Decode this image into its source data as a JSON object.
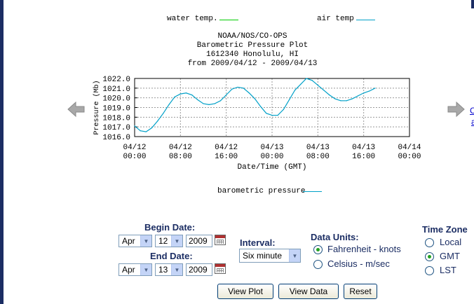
{
  "legend_top": {
    "water_label": "water temp.",
    "water_color": "#00cc00",
    "air_label": "air temp",
    "air_color": "#00a0c8"
  },
  "plot_title": {
    "line1": "NOAA/NOS/CO-OPS",
    "line2": "Barometric Pressure Plot",
    "line3": "1612340 Honolulu, HI",
    "line4": "from 2009/04/12 - 2009/04/13"
  },
  "chart_data": {
    "type": "line",
    "ylabel": "Pressure (Mb)",
    "xlabel": "Date/Time (GMT)",
    "ylim": [
      1016.0,
      1022.0
    ],
    "yticks": [
      "1022.0",
      "1021.0",
      "1020.0",
      "1019.0",
      "1018.0",
      "1017.0",
      "1016.0"
    ],
    "xticks": [
      {
        "date": "04/12",
        "time": "00:00"
      },
      {
        "date": "04/12",
        "time": "08:00"
      },
      {
        "date": "04/12",
        "time": "16:00"
      },
      {
        "date": "04/13",
        "time": "00:00"
      },
      {
        "date": "04/13",
        "time": "08:00"
      },
      {
        "date": "04/13",
        "time": "16:00"
      },
      {
        "date": "04/14",
        "time": "00:00"
      }
    ],
    "xlim_hours": [
      0,
      48
    ],
    "grid": true,
    "series": [
      {
        "name": "barometric pressure",
        "color": "#00a0c8",
        "x_hours": [
          0,
          1,
          2,
          3,
          4,
          5,
          6,
          7,
          8,
          9,
          10,
          11,
          12,
          13,
          14,
          15,
          16,
          17,
          18,
          19,
          20,
          21,
          22,
          23,
          24,
          25,
          26,
          27,
          28,
          29,
          30,
          31,
          32,
          33,
          34,
          35,
          36,
          37,
          38,
          39,
          40,
          41,
          42
        ],
        "y": [
          1017.1,
          1016.6,
          1016.5,
          1016.9,
          1017.6,
          1018.4,
          1019.3,
          1020.1,
          1020.4,
          1020.5,
          1020.3,
          1019.8,
          1019.4,
          1019.3,
          1019.4,
          1019.7,
          1020.3,
          1020.9,
          1021.1,
          1021.0,
          1020.5,
          1019.9,
          1019.1,
          1018.4,
          1018.2,
          1018.2,
          1018.8,
          1019.8,
          1020.8,
          1021.4,
          1022.0,
          1021.8,
          1021.3,
          1020.8,
          1020.3,
          1019.9,
          1019.7,
          1019.7,
          1019.9,
          1020.2,
          1020.5,
          1020.7,
          1021.0
        ]
      }
    ]
  },
  "legend_bottom": {
    "label": "barometric pressure",
    "color": "#00a0c8"
  },
  "nav": {
    "prev_icon": "left-arrow-icon",
    "next_icon": "right-arrow-icon",
    "side_link_1": "C",
    "side_link_2": "a"
  },
  "form": {
    "begin_label": "Begin Date:",
    "begin_month": "Apr",
    "begin_day": "12",
    "begin_year": "2009",
    "end_label": "End Date:",
    "end_month": "Apr",
    "end_day": "13",
    "end_year": "2009",
    "interval_label": "Interval:",
    "interval_value": "Six minute",
    "units_label": "Data Units:",
    "unit_options": [
      {
        "label": "Fahrenheit - knots",
        "checked": true
      },
      {
        "label": "Celsius - m/sec",
        "checked": false
      }
    ],
    "tz_label": "Time Zone",
    "tz_options": [
      {
        "label": "Local",
        "checked": false
      },
      {
        "label": "GMT",
        "checked": true
      },
      {
        "label": "LST",
        "checked": false
      }
    ],
    "view_plot": "View Plot",
    "view_data": "View Data",
    "reset": "Reset"
  }
}
